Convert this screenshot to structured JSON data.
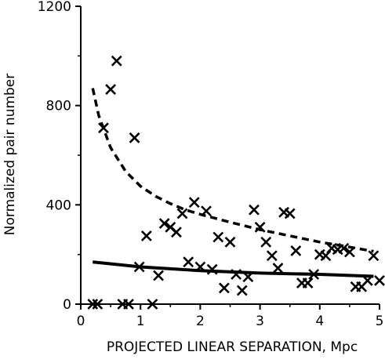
{
  "chart_data": {
    "type": "scatter",
    "title": "",
    "xlabel": "PROJECTED LINEAR SEPARATION, Mpc",
    "ylabel": "Normalized pair number",
    "xlim": [
      0,
      5
    ],
    "ylim": [
      0,
      1200
    ],
    "x_ticks": [
      0,
      1,
      2,
      3,
      4,
      5
    ],
    "x_tick_labels": [
      "0",
      "1",
      "2",
      "3",
      "4",
      "5"
    ],
    "y_ticks": [
      0,
      400,
      800,
      1200
    ],
    "y_tick_labels": [
      "0",
      "400",
      "800",
      "1200"
    ],
    "grid": false,
    "legend": "none",
    "series": [
      {
        "marker": "x",
        "color": "#000000",
        "points": [
          [
            0.2,
            0
          ],
          [
            0.28,
            0
          ],
          [
            0.38,
            710
          ],
          [
            0.5,
            865
          ],
          [
            0.6,
            980
          ],
          [
            0.7,
            0
          ],
          [
            0.8,
            0
          ],
          [
            0.9,
            670
          ],
          [
            0.98,
            150
          ],
          [
            1.1,
            275
          ],
          [
            1.2,
            0
          ],
          [
            1.3,
            115
          ],
          [
            1.4,
            325
          ],
          [
            1.5,
            310
          ],
          [
            1.6,
            290
          ],
          [
            1.7,
            365
          ],
          [
            1.8,
            170
          ],
          [
            1.9,
            410
          ],
          [
            2.0,
            150
          ],
          [
            2.1,
            375
          ],
          [
            2.2,
            140
          ],
          [
            2.3,
            270
          ],
          [
            2.4,
            65
          ],
          [
            2.5,
            250
          ],
          [
            2.6,
            120
          ],
          [
            2.7,
            55
          ],
          [
            2.8,
            110
          ],
          [
            2.9,
            380
          ],
          [
            3.0,
            310
          ],
          [
            3.1,
            250
          ],
          [
            3.2,
            195
          ],
          [
            3.3,
            145
          ],
          [
            3.4,
            370
          ],
          [
            3.5,
            365
          ],
          [
            3.6,
            215
          ],
          [
            3.7,
            85
          ],
          [
            3.8,
            85
          ],
          [
            3.9,
            120
          ],
          [
            4.0,
            200
          ],
          [
            4.1,
            195
          ],
          [
            4.2,
            225
          ],
          [
            4.3,
            220
          ],
          [
            4.4,
            225
          ],
          [
            4.5,
            210
          ],
          [
            4.6,
            70
          ],
          [
            4.7,
            70
          ],
          [
            4.8,
            95
          ],
          [
            4.9,
            195
          ],
          [
            5.0,
            95
          ]
        ]
      },
      {
        "line_style": "dashed",
        "color": "#000000",
        "points": [
          [
            0.2,
            870
          ],
          [
            0.3,
            760
          ],
          [
            0.5,
            630
          ],
          [
            0.75,
            535
          ],
          [
            1.0,
            475
          ],
          [
            1.25,
            435
          ],
          [
            1.5,
            405
          ],
          [
            1.75,
            380
          ],
          [
            2.0,
            362
          ],
          [
            2.5,
            330
          ],
          [
            3.0,
            300
          ],
          [
            3.5,
            275
          ],
          [
            4.0,
            250
          ],
          [
            4.5,
            230
          ],
          [
            4.9,
            213
          ]
        ]
      },
      {
        "line_style": "solid",
        "color": "#000000",
        "points": [
          [
            0.2,
            170
          ],
          [
            1.0,
            150
          ],
          [
            2.0,
            135
          ],
          [
            3.0,
            125
          ],
          [
            4.0,
            120
          ],
          [
            4.9,
            112
          ]
        ]
      }
    ]
  }
}
